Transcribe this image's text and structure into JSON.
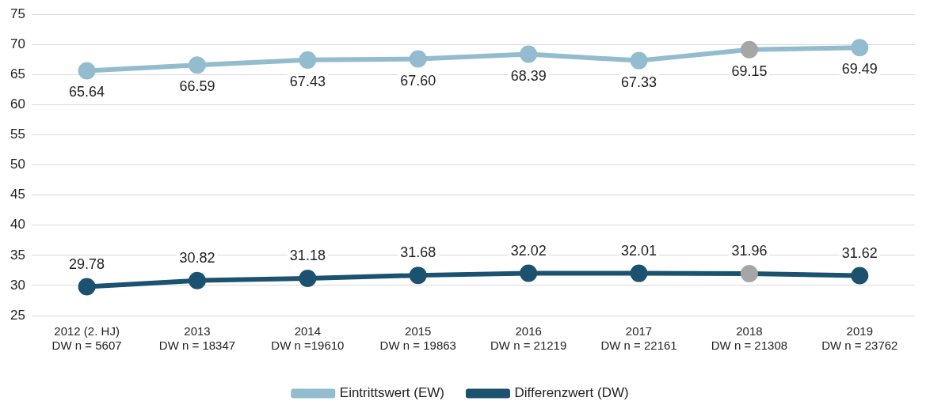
{
  "chart_data": {
    "type": "line",
    "categories": [
      "2012 (2. HJ)\nDW n = 5607",
      "2013\nDW n = 18347",
      "2014\nDW n =19610",
      "2015\nDW n = 19863",
      "2016\nDW n = 21219",
      "2017\nDW n = 22161",
      "2018\nDW n = 21308",
      "2019\nDW n = 23762"
    ],
    "series": [
      {
        "name": "Eintrittswert (EW)",
        "color": "#93bccf",
        "colors": [
          "#93bccf",
          "#93bccf",
          "#93bccf",
          "#93bccf",
          "#93bccf",
          "#93bccf",
          "#a6a6a6",
          "#93bccf"
        ],
        "values": [
          65.64,
          66.59,
          67.43,
          67.6,
          68.39,
          67.33,
          69.15,
          69.49
        ],
        "value_labels": [
          "65.64",
          "66.59",
          "67.43",
          "67.60",
          "68.39",
          "67.33",
          "69.15",
          "69.49"
        ]
      },
      {
        "name": "Differenzwert (DW)",
        "color": "#1a5270",
        "colors": [
          "#1a5270",
          "#1a5270",
          "#1a5270",
          "#1a5270",
          "#1a5270",
          "#1a5270",
          "#a6a6a6",
          "#1a5270"
        ],
        "values": [
          29.78,
          30.82,
          31.18,
          31.68,
          32.02,
          32.01,
          31.96,
          31.62
        ],
        "value_labels": [
          "29.78",
          "30.82",
          "31.18",
          "31.68",
          "32.02",
          "32.01",
          "31.96",
          "31.62"
        ]
      }
    ],
    "ylim": [
      25,
      75
    ],
    "yticks": [
      25,
      30,
      35,
      40,
      45,
      50,
      55,
      60,
      65,
      70,
      75
    ],
    "grid": "y",
    "legend": "bottom",
    "marker": "circle",
    "line_style": "solid"
  }
}
